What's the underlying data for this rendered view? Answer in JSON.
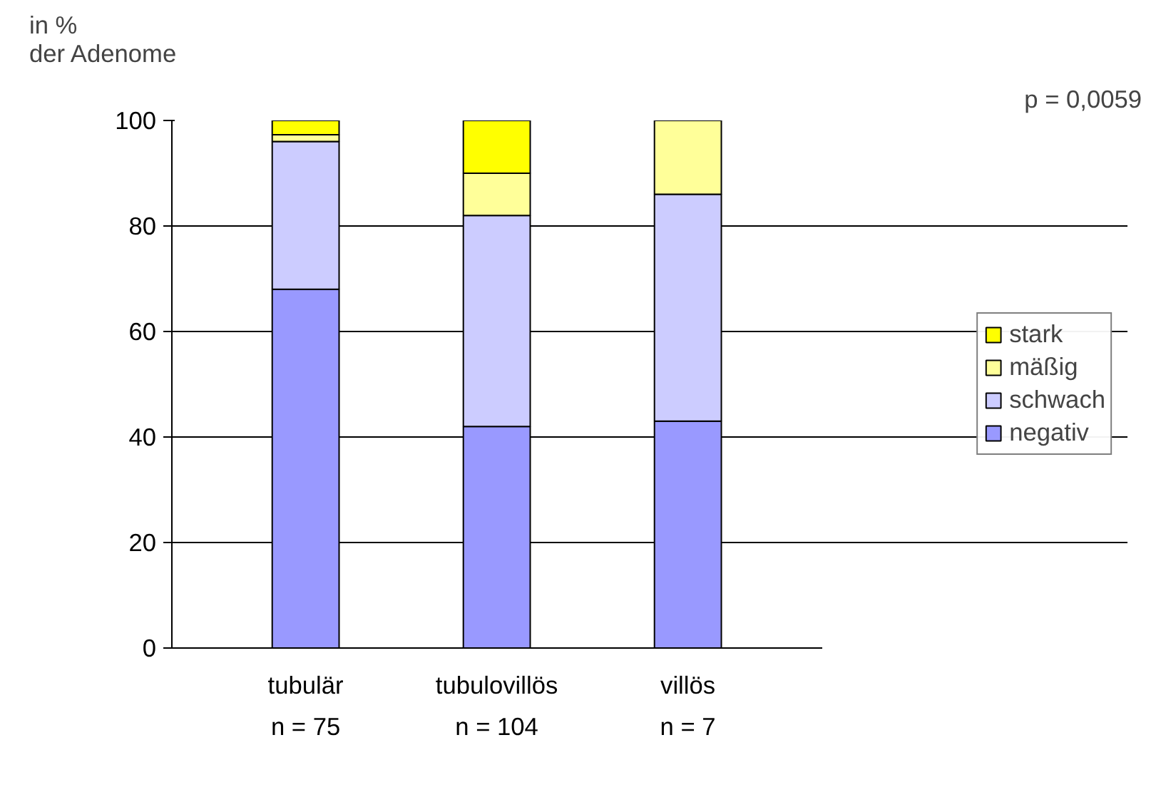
{
  "chart_data": {
    "type": "bar",
    "stacked": true,
    "ylabel": "in % der Adenome",
    "categories": [
      "tubulär",
      "tubulovillös",
      "villös"
    ],
    "series": [
      {
        "name": "negativ",
        "color": "#9999ff",
        "values": [
          68,
          42,
          43
        ]
      },
      {
        "name": "schwach",
        "color": "#ccccff",
        "values": [
          28,
          40,
          43
        ]
      },
      {
        "name": "mäßig",
        "color": "#ffff99",
        "values": [
          1.3,
          8,
          14
        ]
      },
      {
        "name": "stark",
        "color": "#ffff00",
        "values": [
          2.7,
          10,
          0
        ]
      }
    ],
    "ylim": [
      0,
      100
    ],
    "yticks": [
      0,
      20,
      40,
      60,
      80,
      100
    ],
    "grid": "y",
    "legend": "right",
    "annotations": [
      "p = 0,0059",
      "n = 75",
      "n = 104",
      "n = 7"
    ]
  }
}
